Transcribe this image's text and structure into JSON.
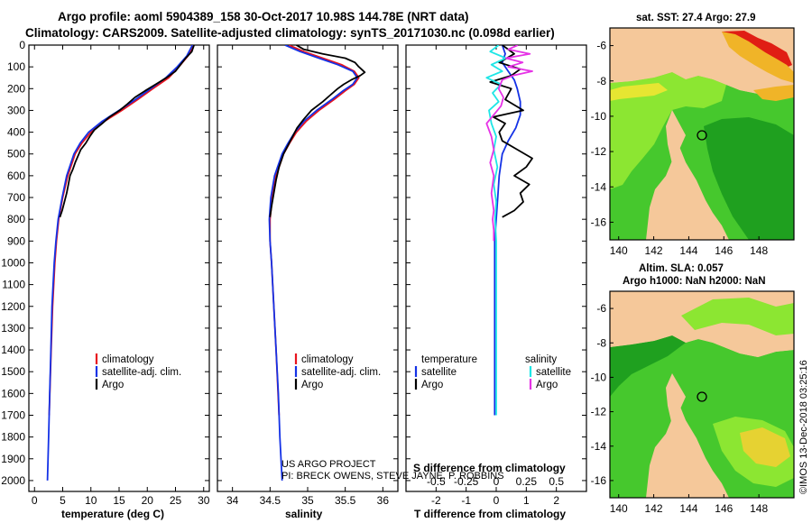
{
  "header": {
    "line1": "Argo profile: aoml 5904389_158 30-Oct-2017 10.98S 144.78E (NRT data)",
    "line2": "Climatology: CARS2009. Satellite-adjusted climatology: synTS_20171030.nc (0.098d earlier)"
  },
  "copyright": "©IMOS 13-Dec-2018 03:25:16",
  "credit": {
    "line1": "US ARGO PROJECT",
    "line2": "PI: BRECK OWENS, STEVE JAYNE, P. ROBBINS"
  },
  "colors": {
    "climatology": "#e8141e",
    "satellite": "#1432e6",
    "argo": "#000000",
    "salinity_sat": "#1ee6e6",
    "salinity_argo": "#e632e6",
    "land": "#f5c89a",
    "sea_deep": "#1fa01f",
    "sea_mid": "#46c82d",
    "sea_light": "#8ce632",
    "warm": "#f0b428",
    "hot": "#e01e14"
  },
  "chart_data": [
    {
      "id": "temperature",
      "type": "line",
      "xlabel": "temperature (deg C)",
      "ylabel": "",
      "xlim": [
        -1,
        31
      ],
      "ylim": [
        2050,
        0
      ],
      "xticks": [
        0,
        5,
        10,
        15,
        20,
        25,
        30
      ],
      "yticks": [
        0,
        100,
        200,
        300,
        400,
        500,
        600,
        700,
        800,
        900,
        1000,
        1100,
        1200,
        1300,
        1400,
        1500,
        1600,
        1700,
        1800,
        1900,
        2000
      ],
      "legend": {
        "position": "lower-center",
        "entries": [
          "climatology",
          "satellite-adj. clim.",
          "Argo"
        ]
      },
      "series": [
        {
          "name": "climatology",
          "depth": [
            0,
            50,
            100,
            150,
            200,
            250,
            300,
            350,
            400,
            450,
            500,
            600,
            700,
            800,
            900,
            1000,
            1200,
            1400,
            1700
          ],
          "values": [
            28.2,
            27.2,
            25.6,
            23.8,
            21.0,
            18.3,
            15.5,
            12.4,
            10.0,
            8.4,
            7.2,
            5.9,
            5.0,
            4.3,
            3.9,
            3.6,
            3.2,
            2.95,
            2.6
          ]
        },
        {
          "name": "satellite-adj. clim.",
          "depth": [
            0,
            50,
            100,
            150,
            200,
            250,
            300,
            350,
            400,
            450,
            500,
            600,
            700,
            800,
            900,
            1000,
            1200,
            1400,
            1600,
            1800,
            2000
          ],
          "values": [
            28.0,
            27.0,
            25.3,
            23.3,
            20.6,
            17.9,
            15.0,
            12.0,
            9.6,
            8.1,
            7.0,
            5.7,
            4.9,
            4.2,
            3.8,
            3.5,
            3.1,
            2.9,
            2.7,
            2.5,
            2.3
          ]
        },
        {
          "name": "Argo",
          "depth": [
            0,
            30,
            60,
            90,
            120,
            150,
            180,
            210,
            240,
            270,
            300,
            330,
            360,
            390,
            420,
            450,
            480,
            510,
            540,
            570,
            600,
            640,
            680,
            720,
            760,
            790
          ],
          "values": [
            28.3,
            27.9,
            26.8,
            25.9,
            25.0,
            23.4,
            21.5,
            19.6,
            17.8,
            16.5,
            15.1,
            13.3,
            12.0,
            10.6,
            9.8,
            9.1,
            8.2,
            7.7,
            7.2,
            6.8,
            6.3,
            6.0,
            5.7,
            5.3,
            4.9,
            4.5
          ]
        }
      ]
    },
    {
      "id": "salinity",
      "type": "line",
      "xlabel": "salinity",
      "xlim": [
        33.8,
        36.2
      ],
      "ylim": [
        2050,
        0
      ],
      "xticks": [
        34,
        34.5,
        35,
        35.5,
        36
      ],
      "legend": {
        "position": "lower-center",
        "entries": [
          "climatology",
          "satellite-adj. clim.",
          "Argo"
        ]
      },
      "series": [
        {
          "name": "climatology",
          "depth": [
            0,
            30,
            60,
            90,
            120,
            150,
            180,
            210,
            250,
            300,
            350,
            400,
            450,
            500,
            600,
            700,
            800,
            900,
            1000,
            1200,
            1400,
            1700
          ],
          "values": [
            34.75,
            34.95,
            35.2,
            35.45,
            35.62,
            35.68,
            35.62,
            35.5,
            35.35,
            35.15,
            34.98,
            34.85,
            34.76,
            34.68,
            34.58,
            34.53,
            34.5,
            34.5,
            34.52,
            34.55,
            34.58,
            34.62
          ]
        },
        {
          "name": "satellite-adj. clim.",
          "depth": [
            0,
            30,
            60,
            90,
            120,
            150,
            180,
            210,
            250,
            300,
            350,
            400,
            450,
            500,
            600,
            700,
            800,
            900,
            1000,
            1200,
            1400,
            1600,
            1800,
            2000
          ],
          "values": [
            34.7,
            34.9,
            35.15,
            35.4,
            35.6,
            35.66,
            35.6,
            35.47,
            35.32,
            35.12,
            34.95,
            34.83,
            34.74,
            34.66,
            34.56,
            34.51,
            34.49,
            34.5,
            34.52,
            34.55,
            34.58,
            34.61,
            34.63,
            34.66
          ]
        },
        {
          "name": "Argo",
          "depth": [
            0,
            20,
            40,
            60,
            80,
            100,
            115,
            125,
            140,
            160,
            180,
            200,
            230,
            260,
            300,
            340,
            380,
            420,
            460,
            500,
            560,
            620,
            680,
            740,
            790
          ],
          "values": [
            34.85,
            34.95,
            35.2,
            35.5,
            35.63,
            35.68,
            35.73,
            35.76,
            35.7,
            35.58,
            35.48,
            35.4,
            35.3,
            35.2,
            35.05,
            34.95,
            34.86,
            34.8,
            34.74,
            34.68,
            34.62,
            34.58,
            34.55,
            34.52,
            34.5
          ]
        }
      ]
    },
    {
      "id": "difference",
      "type": "line",
      "xlabel": "T difference from climatology",
      "xlabel_top": "S difference from climatology",
      "xlim": [
        -3,
        3
      ],
      "ylim": [
        2050,
        0
      ],
      "xticks": [
        -2,
        -1,
        0,
        1,
        2
      ],
      "xtick_labels": [
        "-2",
        "-1",
        "0",
        "1",
        "2"
      ],
      "x2ticks_labels": [
        "-0.5",
        "-0.25",
        "0",
        "0.25",
        "0.5"
      ],
      "legend": {
        "position": "lower-center",
        "temperature_title": "temperature",
        "salinity_title": "salinity",
        "entries": [
          "satellite",
          "Argo"
        ]
      },
      "series": [
        {
          "name": "temperature satellite",
          "depth": [
            0,
            40,
            80,
            120,
            160,
            200,
            260,
            320,
            380,
            440,
            500,
            600,
            700,
            800,
            900,
            1000,
            1200,
            1400,
            1700
          ],
          "values": [
            0.2,
            0.3,
            0.2,
            0.4,
            0.6,
            0.7,
            0.8,
            0.8,
            0.65,
            0.4,
            0.2,
            0.1,
            0.05,
            0.0,
            -0.05,
            -0.05,
            -0.05,
            -0.05,
            -0.05
          ]
        },
        {
          "name": "temperature Argo",
          "depth": [
            0,
            40,
            80,
            110,
            140,
            170,
            200,
            250,
            300,
            330,
            360,
            400,
            440,
            480,
            520,
            560,
            600,
            640,
            680,
            720,
            760,
            790
          ],
          "values": [
            0.2,
            0.6,
            0.1,
            0.8,
            0.5,
            -0.2,
            0.5,
            0.3,
            0.9,
            -0.1,
            0.3,
            0.1,
            0.2,
            0.7,
            1.2,
            1.0,
            0.6,
            1.1,
            0.8,
            0.9,
            0.6,
            0.2
          ]
        },
        {
          "name": "salinity satellite",
          "depth": [
            0,
            30,
            60,
            90,
            120,
            150,
            180,
            220,
            260,
            300,
            360,
            420,
            480,
            560,
            640,
            720,
            800,
            900,
            1000,
            1200,
            1400,
            1700
          ],
          "values": [
            0.02,
            -0.05,
            0.08,
            -0.04,
            0.05,
            -0.08,
            0.04,
            -0.03,
            0.02,
            -0.06,
            -0.04,
            0.0,
            -0.02,
            0.01,
            -0.02,
            0.0,
            -0.01,
            0.0,
            0.0,
            0.0,
            0.0,
            0.0
          ]
        },
        {
          "name": "salinity Argo",
          "depth": [
            0,
            20,
            40,
            60,
            80,
            100,
            120,
            140,
            160,
            200,
            240,
            280,
            320,
            360,
            420,
            480,
            540,
            600,
            680,
            760,
            800,
            850,
            900
          ],
          "values": [
            0.18,
            0.1,
            0.28,
            0.08,
            0.22,
            0.1,
            0.3,
            0.14,
            0.05,
            0.02,
            0.06,
            0.04,
            -0.02,
            -0.08,
            -0.04,
            -0.02,
            -0.05,
            -0.02,
            -0.04,
            -0.02,
            -0.03,
            -0.02,
            -0.02
          ]
        }
      ]
    },
    {
      "id": "sst-map",
      "type": "heatmap",
      "title": "sat. SST: 27.4 Argo: 27.9",
      "xticks": [
        140,
        142,
        144,
        146,
        148
      ],
      "yticks": [
        -6,
        -8,
        -10,
        -12,
        -14,
        -16
      ],
      "xlim": [
        139.5,
        150
      ],
      "ylim": [
        -17,
        -5
      ],
      "float_position": {
        "lon": 144.78,
        "lat": -10.98
      }
    },
    {
      "id": "sla-map",
      "type": "heatmap",
      "title": "Altim. SLA: 0.057",
      "subtitle": "Argo h1000: NaN h2000: NaN",
      "xticks": [
        140,
        142,
        144,
        146,
        148
      ],
      "yticks": [
        -6,
        -8,
        -10,
        -12,
        -14,
        -16
      ],
      "xlim": [
        139.5,
        150
      ],
      "ylim": [
        -17,
        -5
      ],
      "float_position": {
        "lon": 144.78,
        "lat": -10.98
      }
    }
  ]
}
